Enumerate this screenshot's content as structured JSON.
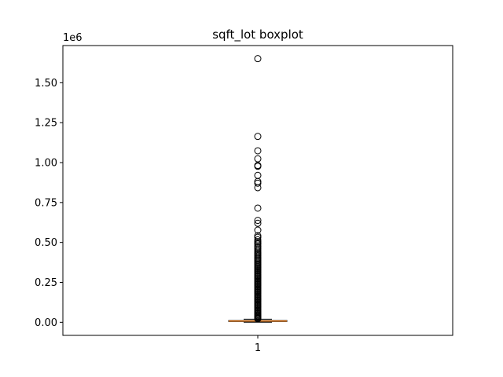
{
  "chart_data": {
    "type": "boxplot",
    "title": "sqft_lot boxplot",
    "xlabel": "",
    "ylabel": "",
    "y_offset_label": "1e6",
    "y_scale_factor": 1000000,
    "ylim": [
      -82000,
      1733000
    ],
    "y_ticks": [
      0,
      250000,
      500000,
      750000,
      1000000,
      1250000,
      1500000
    ],
    "y_tick_labels": [
      "0.00",
      "0.25",
      "0.50",
      "0.75",
      "1.00",
      "1.25",
      "1.50"
    ],
    "categories": [
      "1"
    ],
    "x_tick_labels": [
      "1"
    ],
    "grid": false,
    "colors": {
      "box": "#000000",
      "median": "#ff7f0e",
      "flier": "#000000"
    },
    "boxes": [
      {
        "name": "",
        "q1": 5000,
        "median": 7600,
        "q3": 10700,
        "whisker_low": 520,
        "whisker_high": 19150,
        "fliers": [
          1651000,
          1164000,
          1074000,
          1024000,
          982000,
          977000,
          920000,
          881000,
          871000,
          843000,
          715000,
          638000,
          620000,
          577000,
          542000,
          532000,
          516000,
          505000,
          497000,
          490000,
          478000,
          470000,
          460000,
          450000,
          440000,
          433000,
          425000,
          418000,
          410000,
          402000,
          395000,
          388000,
          380000,
          372000,
          365000,
          358000,
          350000,
          343000,
          336000,
          329000,
          322000,
          315000,
          308000,
          300000,
          293000,
          286000,
          279000,
          272000,
          265000,
          258000,
          251000,
          244000,
          237000,
          230000,
          223000,
          216000,
          209000,
          202000,
          195000,
          188000,
          181000,
          174000,
          167000,
          160000,
          153000,
          146000,
          139000,
          132000,
          125000,
          118000,
          111000,
          104000,
          97000,
          90000,
          83000,
          76000,
          69000,
          62000,
          55000,
          48000,
          42000,
          36000,
          31000,
          27000,
          24000,
          21500
        ]
      }
    ]
  }
}
